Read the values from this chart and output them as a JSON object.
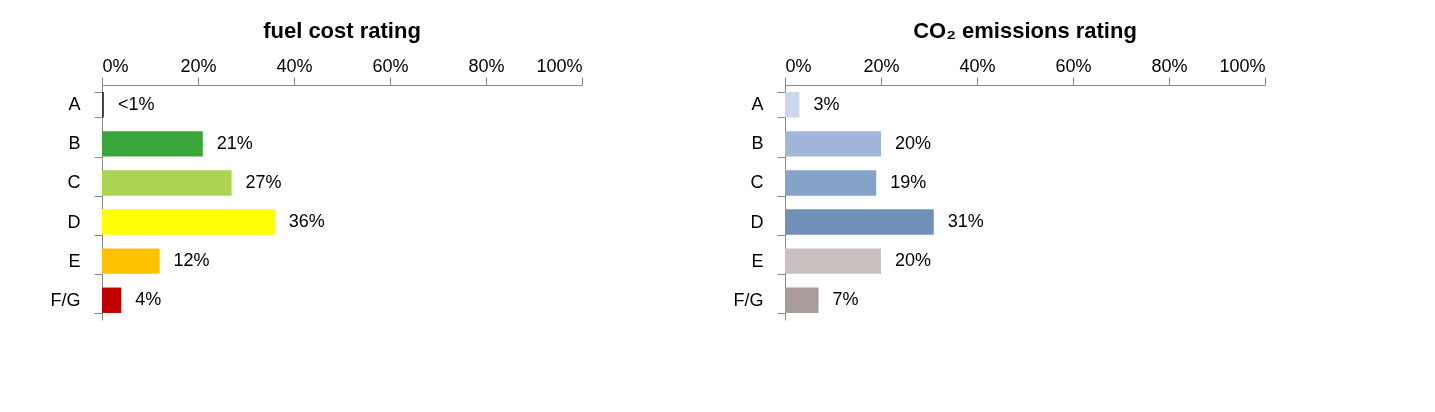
{
  "chart_data": [
    {
      "type": "bar",
      "orientation": "horizontal",
      "title": "fuel cost rating",
      "categories": [
        "A",
        "B",
        "C",
        "D",
        "E",
        "F/G"
      ],
      "values": [
        0.4,
        21,
        27,
        36,
        12,
        4
      ],
      "colors": [
        "#3a3a3a",
        "#3aa63a",
        "#acd452",
        "#ffff00",
        "#ffc000",
        "#c00000"
      ],
      "value_labels": [
        "<1%",
        "21%",
        "27%",
        "36%",
        "12%",
        "4%"
      ],
      "xlim": [
        0,
        100
      ],
      "xticks": [
        {
          "value": 0,
          "label": "0%"
        },
        {
          "value": 20,
          "label": "20%"
        },
        {
          "value": 40,
          "label": "40%"
        },
        {
          "value": 60,
          "label": "60%"
        },
        {
          "value": 80,
          "label": "80%"
        },
        {
          "value": 100,
          "label": "100%"
        }
      ],
      "grid": false
    },
    {
      "type": "bar",
      "orientation": "horizontal",
      "title": "CO₂ emissions rating",
      "categories": [
        "A",
        "B",
        "C",
        "D",
        "E",
        "F/G"
      ],
      "values": [
        3,
        20,
        19,
        31,
        20,
        7
      ],
      "colors": [
        "#c9d8ed",
        "#a2b6da",
        "#85a2c8",
        "#7090b8",
        "#c8c0be",
        "#a99b9a"
      ],
      "value_labels": [
        "3%",
        "20%",
        "19%",
        "31%",
        "20%",
        "7%"
      ],
      "xlim": [
        0,
        100
      ],
      "xticks": [
        {
          "value": 0,
          "label": "0%"
        },
        {
          "value": 20,
          "label": "20%"
        },
        {
          "value": 40,
          "label": "40%"
        },
        {
          "value": 60,
          "label": "60%"
        },
        {
          "value": 80,
          "label": "80%"
        },
        {
          "value": 100,
          "label": "100%"
        }
      ],
      "grid": false
    }
  ]
}
